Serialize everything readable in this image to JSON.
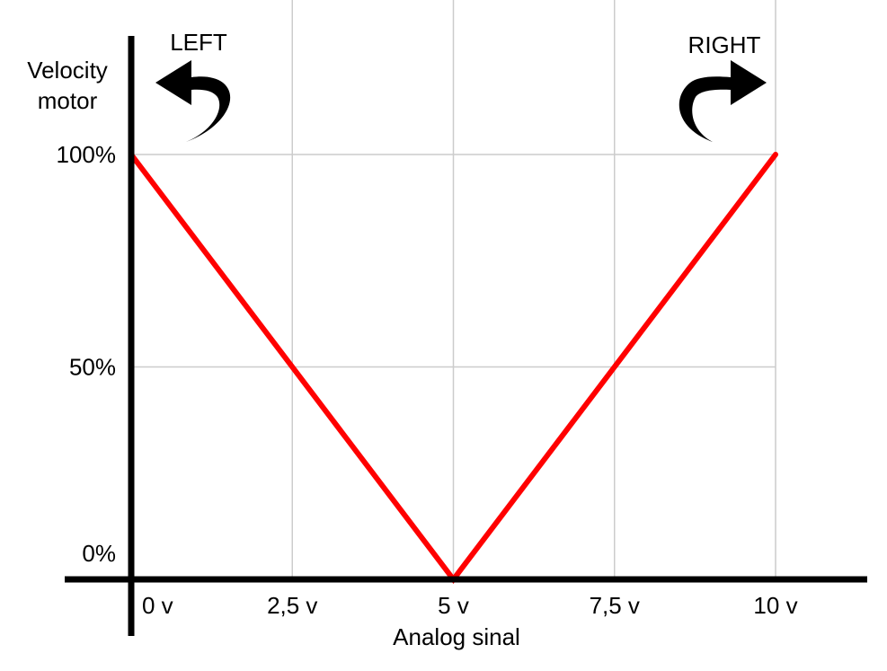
{
  "chart_data": {
    "type": "line",
    "title": "",
    "xlabel": "Analog sinal",
    "ylabel_lines": [
      "Velocity",
      "motor"
    ],
    "x_ticks": [
      {
        "value": 0,
        "label": "0 v"
      },
      {
        "value": 2.5,
        "label": "2,5 v"
      },
      {
        "value": 5,
        "label": "5 v"
      },
      {
        "value": 7.5,
        "label": "7,5 v"
      },
      {
        "value": 10,
        "label": "10 v"
      }
    ],
    "y_ticks": [
      {
        "value": 0,
        "label": "0%"
      },
      {
        "value": 50,
        "label": "50%"
      },
      {
        "value": 100,
        "label": "100%"
      }
    ],
    "xlim": [
      0,
      10
    ],
    "ylim": [
      0,
      100
    ],
    "grid": true,
    "series": [
      {
        "color": "#ff0000",
        "points": [
          {
            "x": 0,
            "y": 100
          },
          {
            "x": 5,
            "y": 0
          },
          {
            "x": 10,
            "y": 100
          }
        ]
      }
    ],
    "annotations": {
      "left": {
        "label": "LEFT",
        "icon": "curved-arrow-left-icon"
      },
      "right": {
        "label": "RIGHT",
        "icon": "curved-arrow-right-icon"
      }
    },
    "colors": {
      "line": "#ff0000",
      "axis": "#000000",
      "grid": "#cccccc"
    }
  }
}
